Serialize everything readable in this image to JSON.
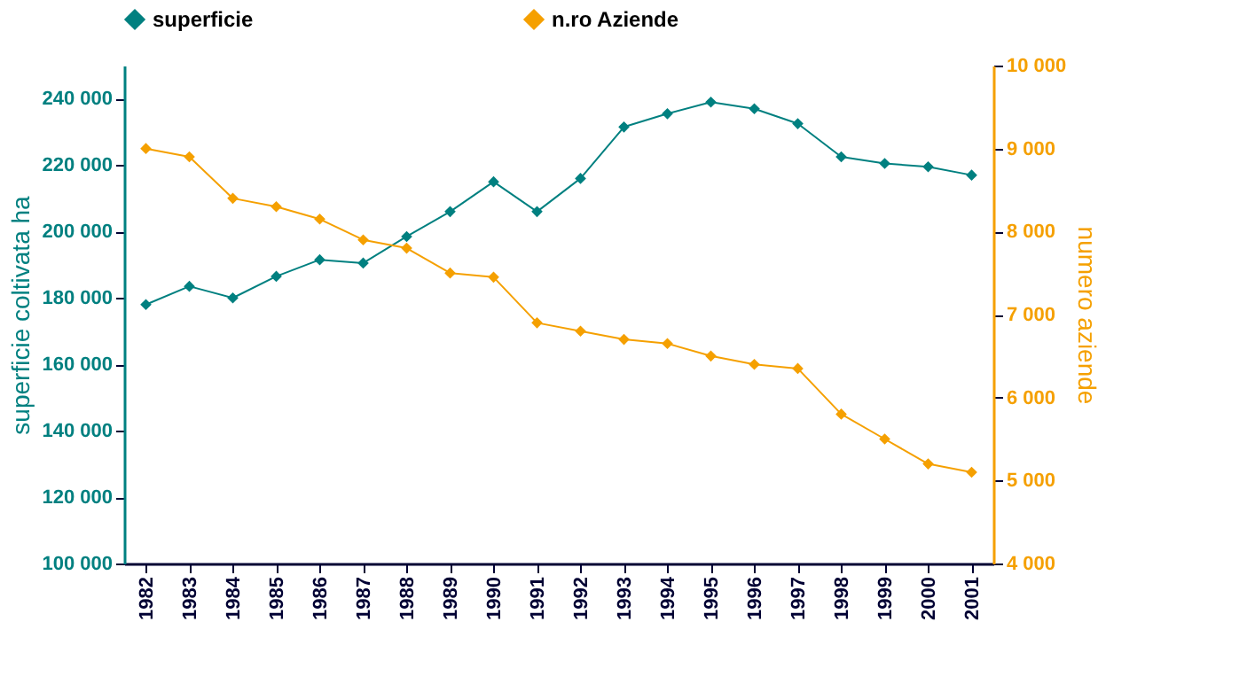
{
  "chart_data": {
    "type": "line",
    "categories": [
      "1982",
      "1983",
      "1984",
      "1985",
      "1986",
      "1987",
      "1988",
      "1989",
      "1990",
      "1991",
      "1992",
      "1993",
      "1994",
      "1995",
      "1996",
      "1997",
      "1998",
      "1999",
      "2000",
      "2001"
    ],
    "ylabel": "superficie coltivata ha",
    "y2label": "numero aziende",
    "ylim": [
      100000,
      250000
    ],
    "yticks": [
      {
        "value": 100000,
        "label": "100 000"
      },
      {
        "value": 120000,
        "label": "120 000"
      },
      {
        "value": 140000,
        "label": "140 000"
      },
      {
        "value": 160000,
        "label": "160 000"
      },
      {
        "value": 180000,
        "label": "180 000"
      },
      {
        "value": 200000,
        "label": "200 000"
      },
      {
        "value": 220000,
        "label": "220 000"
      },
      {
        "value": 240000,
        "label": "240 000"
      }
    ],
    "y2lim": [
      4000,
      10000
    ],
    "y2ticks": [
      {
        "value": 4000,
        "label": "4 000"
      },
      {
        "value": 5000,
        "label": "5 000"
      },
      {
        "value": 6000,
        "label": "6 000"
      },
      {
        "value": 7000,
        "label": "7 000"
      },
      {
        "value": 8000,
        "label": "8 000"
      },
      {
        "value": 9000,
        "label": "9 000"
      },
      {
        "value": 10000,
        "label": "10 000"
      }
    ],
    "series": [
      {
        "name": "superficie",
        "color": "#008080",
        "values": [
          178000,
          183500,
          180000,
          186500,
          191500,
          190500,
          198500,
          206000,
          215000,
          206000,
          216000,
          231500,
          235500,
          239000,
          237000,
          232500,
          222500,
          220500,
          219500,
          217000
        ]
      },
      {
        "name": "n.ro Aziende",
        "color": "#f5a000",
        "axis": "y2",
        "values": [
          9000,
          8900,
          8400,
          8300,
          8150,
          7900,
          7800,
          7500,
          7450,
          6900,
          6800,
          6700,
          6650,
          6500,
          6400,
          6350,
          5800,
          5500,
          5200,
          5100
        ]
      }
    ],
    "marker": "diamond",
    "line_style": "solid",
    "grid": false,
    "legend": "top"
  }
}
